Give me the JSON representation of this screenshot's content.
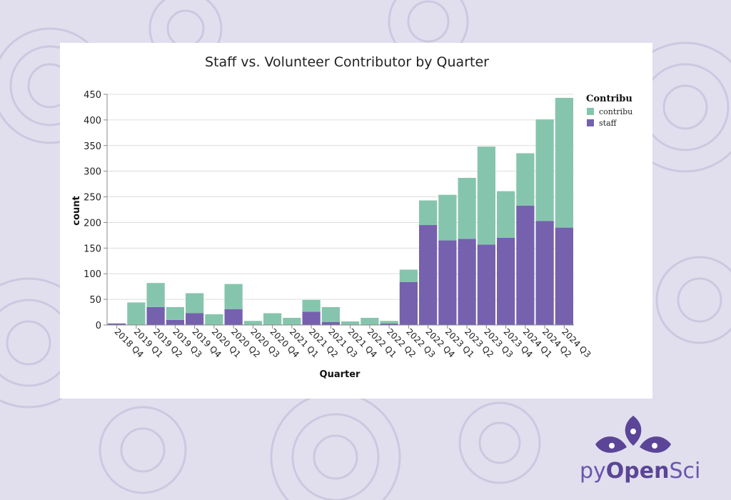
{
  "colors": {
    "background": "#e1dfee",
    "contributor": "#86c5ad",
    "staff": "#7561ae",
    "logo": "#5b4596"
  },
  "logo": {
    "prefix": "py",
    "middle": "Open",
    "suffix": "Sci",
    "icon": "flower-logo-icon"
  },
  "chart_data": {
    "type": "bar",
    "stacked": true,
    "title": "Staff vs. Volunteer Contributor by Quarter",
    "xlabel": "Quarter",
    "ylabel": "count",
    "ylim": [
      0,
      450
    ],
    "yticks": [
      0,
      50,
      100,
      150,
      200,
      250,
      300,
      350,
      400,
      450
    ],
    "grid": true,
    "legend": {
      "title": "Contribu",
      "placement": "top-right",
      "labels": [
        "contribu",
        "staff"
      ]
    },
    "categories": [
      "2018 Q4",
      "2019 Q1",
      "2019 Q2",
      "2019 Q3",
      "2019 Q4",
      "2020 Q1",
      "2020 Q2",
      "2020 Q3",
      "2020 Q4",
      "2021 Q1",
      "2021 Q2",
      "2021 Q3",
      "2021 Q4",
      "2022 Q1",
      "2022 Q2",
      "2022 Q3",
      "2022 Q4",
      "2023 Q1",
      "2023 Q2",
      "2023 Q3",
      "2023 Q4",
      "2024 Q1",
      "2024 Q2",
      "2024 Q3"
    ],
    "series": [
      {
        "name": "staff",
        "values": [
          3,
          0,
          35,
          10,
          23,
          0,
          31,
          0,
          0,
          0,
          26,
          6,
          0,
          0,
          3,
          84,
          195,
          165,
          168,
          157,
          170,
          233,
          203,
          190
        ]
      },
      {
        "name": "contributor",
        "values": [
          0,
          44,
          47,
          25,
          39,
          21,
          49,
          8,
          23,
          14,
          23,
          29,
          7,
          14,
          5,
          24,
          48,
          89,
          119,
          191,
          91,
          102,
          198,
          253
        ]
      }
    ]
  }
}
